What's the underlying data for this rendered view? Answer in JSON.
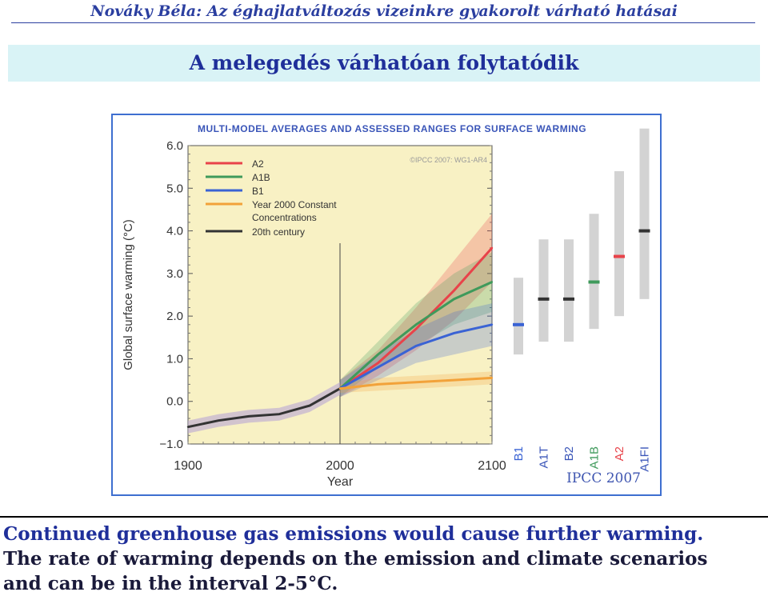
{
  "header": {
    "author": "Nováky Béla",
    "title": "Az éghajlatváltozás vizeinkre gyakorolt várható hatásai"
  },
  "slide_title": "A melegedés várhatóan folytatódik",
  "figure_credit": "IPCC 2007",
  "caption": {
    "line1": "Continued greenhouse gas emissions would cause further warming.",
    "line2": "The rate of warming depends on the emission and climate scenarios",
    "line3": "and can be in the interval 2-5°C."
  },
  "colors": {
    "A2": "#e8434a",
    "A1B": "#3f9a5b",
    "B1": "#3a63d4",
    "constant": "#f2a23a",
    "century20": "#333333",
    "plot_bg": "#f8f1c4",
    "bar": "#d3d3d3"
  },
  "chart_data": {
    "type": "line",
    "title": "Multi-Model Averages and Assessed Ranges for Surface Warming",
    "copyright": "©IPCC 2007: WG1-AR4",
    "xlabel": "Year",
    "ylabel": "Global surface warming (°C)",
    "xlim": [
      1900,
      2100
    ],
    "ylim": [
      -1.0,
      6.0
    ],
    "xticks": [
      "1900",
      "2000",
      "2100"
    ],
    "yticks": [
      "6.0",
      "5.0",
      "4.0",
      "3.0",
      "2.0",
      "1.0",
      "0.0",
      "−1.0"
    ],
    "legend": [
      "A2",
      "A1B",
      "B1",
      "Year 2000 Constant Concentrations",
      "20th century"
    ],
    "series": [
      {
        "name": "20th century",
        "color_key": "century20",
        "x": [
          1900,
          1920,
          1940,
          1960,
          1980,
          2000
        ],
        "y": [
          -0.6,
          -0.45,
          -0.35,
          -0.3,
          -0.1,
          0.3
        ]
      },
      {
        "name": "A2",
        "color_key": "A2",
        "x": [
          2000,
          2025,
          2050,
          2075,
          2100
        ],
        "y": [
          0.3,
          0.9,
          1.7,
          2.6,
          3.6
        ],
        "spread": [
          0.2,
          0.3,
          0.5,
          0.7,
          0.8
        ]
      },
      {
        "name": "A1B",
        "color_key": "A1B",
        "x": [
          2000,
          2025,
          2050,
          2075,
          2100
        ],
        "y": [
          0.3,
          1.1,
          1.8,
          2.4,
          2.8
        ],
        "spread": [
          0.2,
          0.3,
          0.5,
          0.6,
          0.7
        ]
      },
      {
        "name": "B1",
        "color_key": "B1",
        "x": [
          2000,
          2025,
          2050,
          2075,
          2100
        ],
        "y": [
          0.3,
          0.8,
          1.3,
          1.6,
          1.8
        ],
        "spread": [
          0.2,
          0.3,
          0.4,
          0.5,
          0.5
        ]
      },
      {
        "name": "Year 2000 Constant Concentrations",
        "color_key": "constant",
        "x": [
          2000,
          2025,
          2050,
          2075,
          2100
        ],
        "y": [
          0.3,
          0.4,
          0.45,
          0.5,
          0.55
        ],
        "spread": [
          0.1,
          0.15,
          0.15,
          0.15,
          0.15
        ]
      }
    ],
    "scenario_ranges": [
      {
        "name": "B1",
        "low": 1.1,
        "high": 2.9,
        "best": 1.8,
        "color_key": "B1"
      },
      {
        "name": "A1T",
        "low": 1.4,
        "high": 3.8,
        "best": 2.4,
        "color_key": "century20"
      },
      {
        "name": "B2",
        "low": 1.4,
        "high": 3.8,
        "best": 2.4,
        "color_key": "century20"
      },
      {
        "name": "A1B",
        "low": 1.7,
        "high": 4.4,
        "best": 2.8,
        "color_key": "A1B"
      },
      {
        "name": "A2",
        "low": 2.0,
        "high": 5.4,
        "best": 3.4,
        "color_key": "A2"
      },
      {
        "name": "A1FI",
        "low": 2.4,
        "high": 6.4,
        "best": 4.0,
        "color_key": "century20"
      }
    ]
  }
}
